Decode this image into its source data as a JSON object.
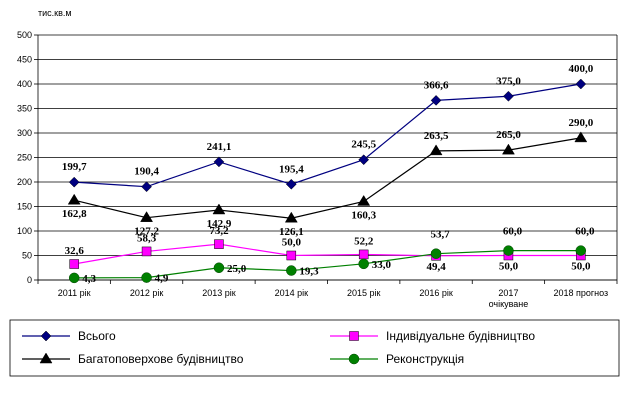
{
  "chart_data": {
    "type": "line",
    "unit_label": "тис.кв.м",
    "categories": [
      "2011 рік",
      "2012 рік",
      "2013 рік",
      "2014 рік",
      "2015 рік",
      "2016 рік",
      "2017 очікуване",
      "2018 прогноз"
    ],
    "ylim": [
      0,
      500
    ],
    "yticks": [
      "0",
      "50",
      "100",
      "150",
      "200",
      "250",
      "300",
      "350",
      "400",
      "450",
      "500"
    ],
    "grid": "horizontal",
    "legend_position": "bottom",
    "series": [
      {
        "name": "Всього",
        "color": "#000080",
        "marker": "diamond",
        "values": [
          199.7,
          190.4,
          241.1,
          195.4,
          245.5,
          366.6,
          375.0,
          400.0
        ],
        "labels": [
          "199,7",
          "190,4",
          "241,1",
          "195,4",
          "245,5",
          "366,6",
          "375,0",
          "400,0"
        ]
      },
      {
        "name": "Індивідуальне будівництво",
        "color": "#ff00ff",
        "marker": "square",
        "values": [
          32.6,
          58.3,
          73.2,
          50.0,
          52.2,
          49.4,
          50.0,
          50.0
        ],
        "labels": [
          "32,6",
          "58,3",
          "73,2",
          "50,0",
          "52,2",
          "49,4",
          "50,0",
          "50,0"
        ]
      },
      {
        "name": "Багатоповерхове будівництво",
        "color": "#000000",
        "marker": "triangle",
        "values": [
          162.8,
          127.2,
          142.9,
          126.1,
          160.3,
          263.5,
          265.0,
          290.0
        ],
        "labels": [
          "162,8",
          "127,2",
          "142,9",
          "126,1",
          "160,3",
          "263,5",
          "265,0",
          "290,0"
        ]
      },
      {
        "name": "Реконструкція",
        "color": "#008000",
        "marker": "circle",
        "values": [
          4.3,
          4.9,
          25.0,
          19.3,
          33.0,
          53.7,
          60.0,
          60.0
        ],
        "labels": [
          "4,3",
          "4,9",
          "25,0",
          "19,3",
          "33,0",
          "53,7",
          "60,0",
          "60,0"
        ]
      }
    ]
  }
}
